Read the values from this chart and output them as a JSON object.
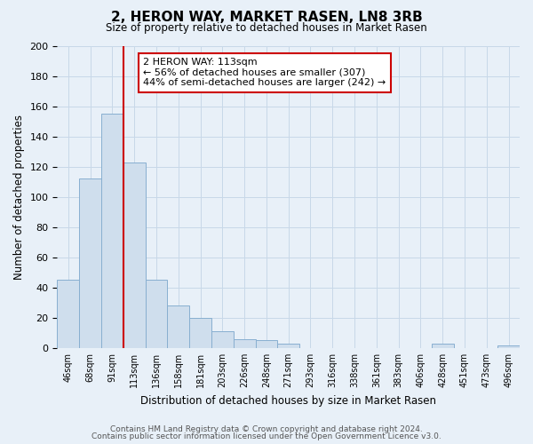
{
  "title": "2, HERON WAY, MARKET RASEN, LN8 3RB",
  "subtitle": "Size of property relative to detached houses in Market Rasen",
  "xlabel": "Distribution of detached houses by size in Market Rasen",
  "ylabel": "Number of detached properties",
  "bar_labels": [
    "46sqm",
    "68sqm",
    "91sqm",
    "113sqm",
    "136sqm",
    "158sqm",
    "181sqm",
    "203sqm",
    "226sqm",
    "248sqm",
    "271sqm",
    "293sqm",
    "316sqm",
    "338sqm",
    "361sqm",
    "383sqm",
    "406sqm",
    "428sqm",
    "451sqm",
    "473sqm",
    "496sqm"
  ],
  "bar_values": [
    45,
    112,
    155,
    123,
    45,
    28,
    20,
    11,
    6,
    5,
    3,
    0,
    0,
    0,
    0,
    0,
    0,
    3,
    0,
    0,
    2
  ],
  "bar_color": "#cfdeed",
  "bar_edge_color": "#88afd0",
  "vline_x": 2.5,
  "vline_color": "#cc0000",
  "ylim": [
    0,
    200
  ],
  "yticks": [
    0,
    20,
    40,
    60,
    80,
    100,
    120,
    140,
    160,
    180,
    200
  ],
  "annotation_title": "2 HERON WAY: 113sqm",
  "annotation_line1": "← 56% of detached houses are smaller (307)",
  "annotation_line2": "44% of semi-detached houses are larger (242) →",
  "annotation_box_color": "#ffffff",
  "annotation_box_edge": "#cc0000",
  "grid_color": "#c8d8e8",
  "background_color": "#e8f0f8",
  "footer1": "Contains HM Land Registry data © Crown copyright and database right 2024.",
  "footer2": "Contains public sector information licensed under the Open Government Licence v3.0."
}
